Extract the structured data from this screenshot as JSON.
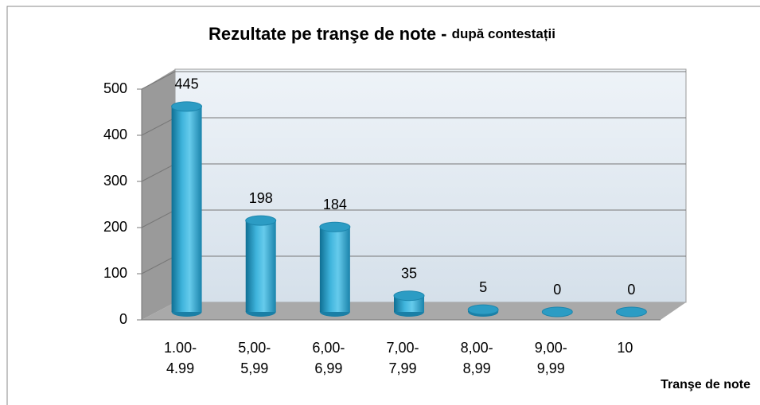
{
  "chart_data": {
    "type": "bar3d",
    "title": "Rezultate pe tranşe de note - ",
    "subtitle": "după contestații",
    "x_label": "Tranşe de note",
    "categories": [
      [
        "1.00-",
        "4.99"
      ],
      [
        "5,00-",
        "5,99"
      ],
      [
        "6,00-",
        "6,99"
      ],
      [
        "7,00-",
        "7,99"
      ],
      [
        "8,00-",
        "8,99"
      ],
      [
        "9,00-",
        "9,99"
      ],
      [
        "10"
      ]
    ],
    "values": [
      445,
      198,
      184,
      35,
      5,
      0,
      0
    ],
    "color": "#2a9fc6",
    "ylim": [
      0,
      500
    ],
    "yticks": [
      0,
      100,
      200,
      300,
      400,
      500
    ],
    "grid": true
  }
}
